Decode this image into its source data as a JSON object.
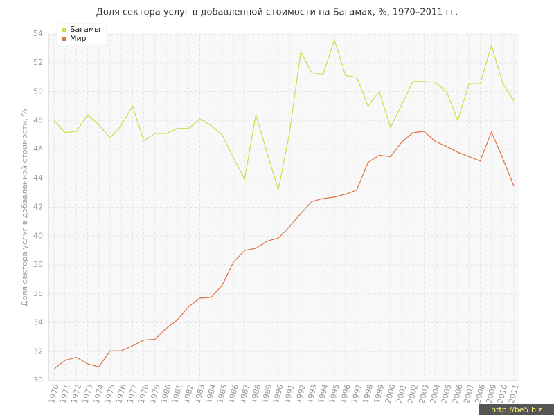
{
  "chart_data": {
    "type": "line",
    "title": "Доля сектора услуг в добавленной стоимости на Багамах, %, 1970–2011 гг.",
    "y_label": "Доля сектора услуг в добавленной стоимости, %",
    "watermark": "http://be5.biz",
    "categories": [
      "1970",
      "1971",
      "1972",
      "1973",
      "1974",
      "1975",
      "1976",
      "1977",
      "1978",
      "1979",
      "1980",
      "1981",
      "1982",
      "1983",
      "1984",
      "1985",
      "1986",
      "1987",
      "1988",
      "1989",
      "1990",
      "1991",
      "1992",
      "1993",
      "1994",
      "1995",
      "1996",
      "1997",
      "1998",
      "1999",
      "2000",
      "2001",
      "2002",
      "2003",
      "2004",
      "2005",
      "2006",
      "2007",
      "2008",
      "2009",
      "2010",
      "2011"
    ],
    "series": [
      {
        "name": "Багамы",
        "color": "#c5e04a",
        "values": [
          48.0,
          47.15,
          47.25,
          48.4,
          47.7,
          46.8,
          47.65,
          49.0,
          46.6,
          47.1,
          47.1,
          47.45,
          47.45,
          48.1,
          47.65,
          47.0,
          45.4,
          43.95,
          48.4,
          45.75,
          43.2,
          47.15,
          52.75,
          51.3,
          51.2,
          53.6,
          51.1,
          51.0,
          49.0,
          50.0,
          47.5,
          49.1,
          50.7,
          50.7,
          50.65,
          50.0,
          48.0,
          50.55,
          50.55,
          53.2,
          50.6,
          49.35
        ]
      },
      {
        "name": "Мир",
        "color": "#e07040",
        "values": [
          30.8,
          31.4,
          31.6,
          31.15,
          30.95,
          32.05,
          32.05,
          32.4,
          32.8,
          32.85,
          33.6,
          34.2,
          35.1,
          35.7,
          35.75,
          36.6,
          38.2,
          39.0,
          39.15,
          39.65,
          39.85,
          40.65,
          41.55,
          42.4,
          42.6,
          42.7,
          42.9,
          43.2,
          45.1,
          45.6,
          45.5,
          46.5,
          47.15,
          47.25,
          46.55,
          46.2,
          45.8,
          45.5,
          45.2,
          47.2,
          45.4,
          43.45
        ]
      }
    ],
    "ylim": [
      30,
      54
    ],
    "yticks": [
      30,
      32,
      34,
      36,
      38,
      40,
      42,
      44,
      46,
      48,
      50,
      52,
      54
    ],
    "grid": true
  }
}
